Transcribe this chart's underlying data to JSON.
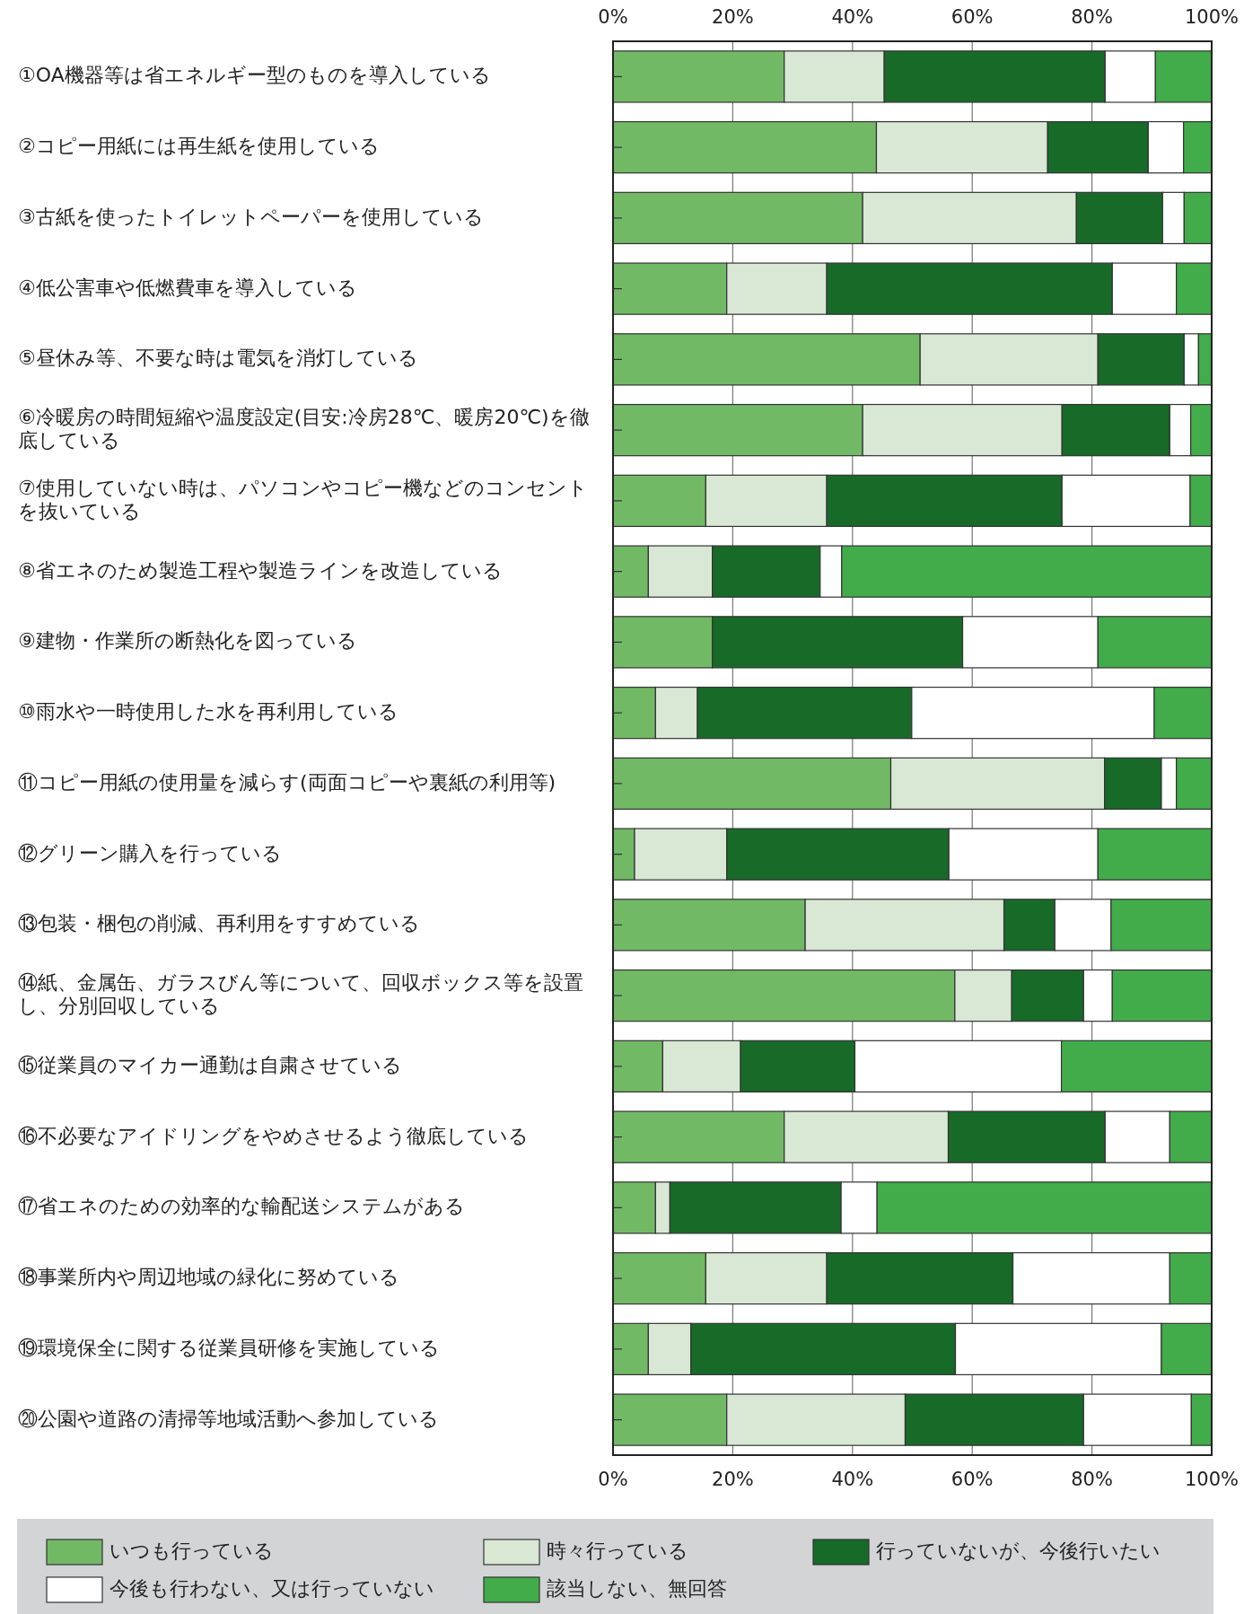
{
  "chart_data": {
    "type": "bar",
    "orientation": "horizontal",
    "stacked": true,
    "categories": [
      "①OA機器等は省エネルギー型のものを導入している",
      "②コピー用紙には再生紙を使用している",
      "③古紙を使ったトイレットペーパーを使用している",
      "④低公害車や低燃費車を導入している",
      "⑤昼休み等、不要な時は電気を消灯している",
      "⑥冷暖房の時間短縮や温度設定(目安:冷房28℃、暖房20℃)を徹底している",
      "⑦使用していない時は、パソコンやコピー機などのコンセントを抜いている",
      "⑧省エネのため製造工程や製造ラインを改造している",
      "⑨建物・作業所の断熱化を図っている",
      "⑩雨水や一時使用した水を再利用している",
      "⑪コピー用紙の使用量を減らす(両面コピーや裏紙の利用等)",
      "⑫グリーン購入を行っている",
      "⑬包装・梱包の削減、再利用をすすめている",
      "⑭紙、金属缶、ガラスびん等について、回収ボックス等を設置し、分別回収している",
      "⑮従業員のマイカー通勤は自粛させている",
      "⑯不必要なアイドリングをやめさせるよう徹底している",
      "⑰省エネのための効率的な輸配送システムがある",
      "⑱事業所内や周辺地域の緑化に努めている",
      "⑲環境保全に関する従業員研修を実施している",
      "⑳公園や道路の清掃等地域活動へ参加している"
    ],
    "series": [
      {
        "name": "いつも行っている",
        "color": "#72b966",
        "values": [
          28.6,
          44.0,
          41.7,
          19.0,
          51.3,
          41.7,
          15.5,
          5.9,
          16.6,
          7.1,
          46.4,
          3.6,
          32.1,
          57.1,
          8.3,
          28.6,
          7.1,
          15.5,
          5.9,
          19.0
        ]
      },
      {
        "name": "時々行っている",
        "color": "#d9e8d4",
        "values": [
          16.7,
          28.6,
          35.7,
          16.7,
          29.7,
          33.3,
          20.2,
          10.7,
          0,
          7.0,
          35.7,
          15.4,
          33.2,
          9.5,
          13.0,
          27.4,
          2.4,
          20.2,
          7.1,
          29.8
        ]
      },
      {
        "name": "行っていないが、今後行いたい",
        "color": "#186a29",
        "values": [
          36.9,
          16.8,
          14.4,
          47.7,
          14.4,
          18.0,
          39.3,
          18.0,
          41.8,
          35.8,
          9.5,
          37.1,
          8.5,
          12.0,
          19.1,
          26.2,
          28.6,
          31.1,
          44.2,
          29.8
        ]
      },
      {
        "name": "今後も行わない、又は行っていない",
        "color": "#ffffff",
        "values": [
          8.4,
          5.9,
          3.6,
          10.7,
          2.4,
          3.5,
          21.4,
          3.6,
          22.6,
          40.5,
          2.5,
          24.9,
          9.4,
          4.8,
          34.5,
          10.8,
          6.0,
          26.2,
          34.4,
          18.0
        ]
      },
      {
        "name": "該当しない、無回答",
        "color": "#42ac4a",
        "values": [
          9.4,
          4.7,
          4.6,
          5.9,
          2.2,
          3.5,
          3.6,
          61.8,
          19.0,
          9.6,
          5.9,
          19.0,
          16.8,
          16.6,
          25.1,
          7.0,
          55.9,
          7.0,
          8.4,
          3.4
        ]
      }
    ],
    "xlim": [
      0,
      100
    ],
    "xticks": [
      {
        "value": 0,
        "label": "0%"
      },
      {
        "value": 20,
        "label": "20%"
      },
      {
        "value": 40,
        "label": "40%"
      },
      {
        "value": 60,
        "label": "60%"
      },
      {
        "value": 80,
        "label": "80%"
      },
      {
        "value": 100,
        "label": "100%"
      }
    ],
    "x2lim": [
      0,
      100
    ],
    "x2ticks": [
      {
        "value": 0,
        "label": "0%"
      },
      {
        "value": 20,
        "label": "20%"
      },
      {
        "value": 40,
        "label": "40%"
      },
      {
        "value": 60,
        "label": "60%"
      },
      {
        "value": 80,
        "label": "80%"
      },
      {
        "value": 100,
        "label": "100%"
      }
    ],
    "grid": "x",
    "legend": "bottom"
  }
}
